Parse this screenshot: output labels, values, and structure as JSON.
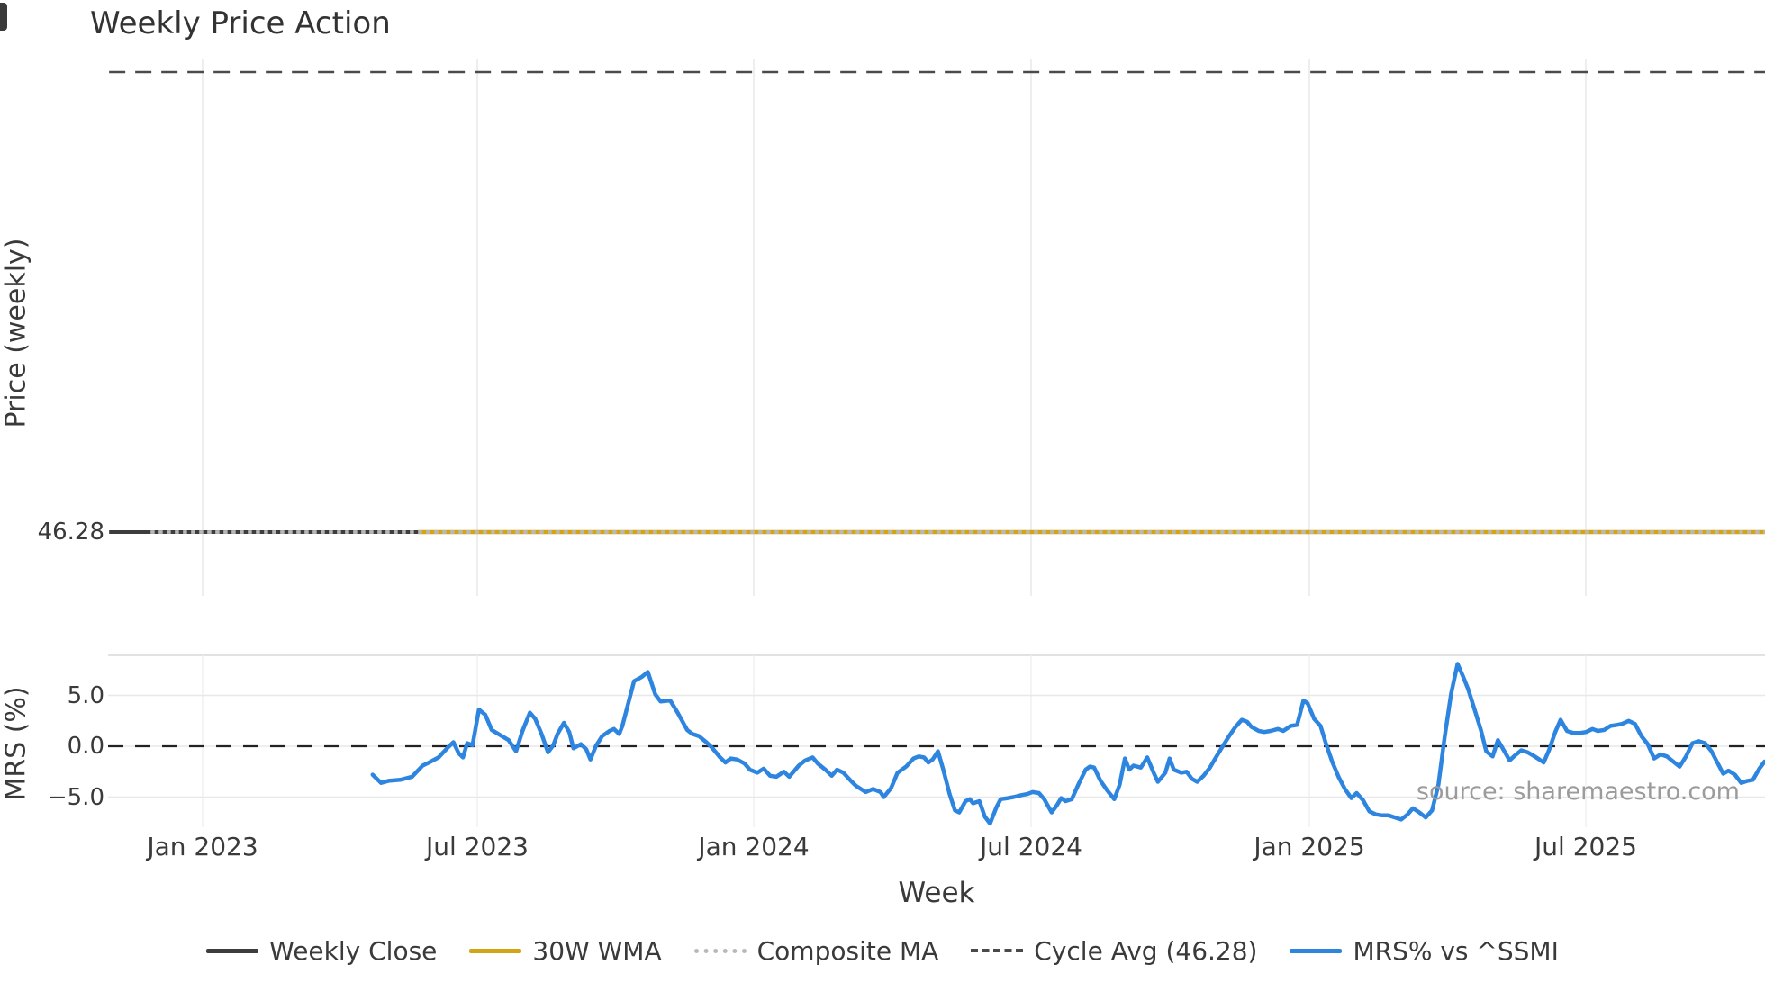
{
  "title": "Weekly Price Action",
  "source": "source: sharemaestro.com",
  "price_panel": {
    "ylabel": "Price (weekly)",
    "ytick_label": "46.28"
  },
  "mrs_panel": {
    "ylabel": "MRS (%)",
    "yticks": [
      "5.0",
      "0.0",
      "−5.0"
    ],
    "ytick_values": [
      5.0,
      0.0,
      -5.0
    ]
  },
  "xaxis": {
    "label": "Week",
    "tick_labels": [
      "Jan 2023",
      "Jul 2023",
      "Jan 2024",
      "Jul 2024",
      "Jan 2025",
      "Jul 2025"
    ]
  },
  "colors": {
    "dark": "#3d3d3d",
    "gold": "#d4a417",
    "gray_dotted": "#b9b9b9",
    "cycle_dash": "#4a4a4a",
    "blue": "#2d85e0",
    "zero_dash": "#222222",
    "grid": "#e8e8e8",
    "grid_faint": "#efefef",
    "panel_border": "#d9d9d9",
    "text": "#3a3a3a",
    "source_text": "#9b9b9b"
  },
  "legend": [
    {
      "label": "Weekly Close",
      "style": "solid",
      "color": "#3d3d3d"
    },
    {
      "label": "30W WMA",
      "style": "solid",
      "color": "#d4a417"
    },
    {
      "label": "Composite MA",
      "style": "dotted",
      "color": "#b9b9b9"
    },
    {
      "label": "Cycle Avg (46.28)",
      "style": "dashed",
      "color": "#4a4a4a"
    },
    {
      "label": "MRS% vs ^SSMI",
      "style": "solid",
      "color": "#2d85e0"
    }
  ],
  "chart_data": [
    {
      "type": "line",
      "panel": "price",
      "title": "Weekly Price Action",
      "ylabel": "Price (weekly)",
      "yticks": [
        46.28
      ],
      "x_axis": {
        "label": "Week",
        "tick_labels": [
          "Jan 2023",
          "Jul 2023",
          "Jan 2024",
          "Jul 2024",
          "Jan 2025",
          "Jul 2025"
        ],
        "tick_weeks": [
          0,
          25.9,
          51.9,
          78.0,
          104.1,
          130.2
        ]
      },
      "series": [
        {
          "name": "Weekly Close",
          "style": "solid",
          "color": "#3d3d3d",
          "value": 46.28,
          "start_week": -8.8,
          "end_week": 147,
          "note": "flat at 46.28 across entire range"
        },
        {
          "name": "30W WMA",
          "style": "solid",
          "color": "#d4a417",
          "value": 46.28,
          "start_week": 20.3,
          "end_week": 147,
          "note": "flat, overlays weekly close"
        },
        {
          "name": "Composite MA",
          "style": "dotted",
          "color": "#b9b9b9",
          "value": 46.28,
          "start_week": -4.9,
          "end_week": 147,
          "note": "dotted, drawn on top"
        },
        {
          "name": "Cycle Avg",
          "style": "dashed",
          "color": "#4a4a4a",
          "value": 46.28,
          "start_week": -8.8,
          "end_week": 147,
          "note": "dashed line rendered along top of panel"
        }
      ]
    },
    {
      "type": "line",
      "panel": "mrs",
      "name": "MRS% vs ^SSMI",
      "color": "#2d85e0",
      "ylabel": "MRS (%)",
      "yticks": [
        5.0,
        0.0,
        -5.0
      ],
      "ylim": [
        -8.0,
        8.9
      ],
      "zero_line": true,
      "x_unit": "weeks since 2023-01-01",
      "points": [
        [
          16.0,
          -2.8
        ],
        [
          16.8,
          -3.6
        ],
        [
          17.5,
          -3.4
        ],
        [
          18.6,
          -3.3
        ],
        [
          19.7,
          -3.0
        ],
        [
          20.7,
          -1.9
        ],
        [
          21.3,
          -1.6
        ],
        [
          22.2,
          -1.1
        ],
        [
          23.1,
          -0.1
        ],
        [
          23.6,
          0.4
        ],
        [
          24.1,
          -0.7
        ],
        [
          24.5,
          -1.1
        ],
        [
          24.9,
          0.3
        ],
        [
          25.4,
          0.1
        ],
        [
          26.0,
          3.6
        ],
        [
          26.6,
          3.1
        ],
        [
          27.2,
          1.6
        ],
        [
          28.0,
          1.1
        ],
        [
          28.8,
          0.6
        ],
        [
          29.5,
          -0.5
        ],
        [
          30.1,
          1.5
        ],
        [
          30.8,
          3.3
        ],
        [
          31.3,
          2.7
        ],
        [
          31.9,
          1.2
        ],
        [
          32.5,
          -0.6
        ],
        [
          33.0,
          0.1
        ],
        [
          33.4,
          1.2
        ],
        [
          34.0,
          2.3
        ],
        [
          34.5,
          1.4
        ],
        [
          34.9,
          -0.2
        ],
        [
          35.6,
          0.2
        ],
        [
          36.1,
          -0.3
        ],
        [
          36.5,
          -1.3
        ],
        [
          37.0,
          0.0
        ],
        [
          37.6,
          1.0
        ],
        [
          38.3,
          1.5
        ],
        [
          38.7,
          1.7
        ],
        [
          39.2,
          1.2
        ],
        [
          39.5,
          2.0
        ],
        [
          40.6,
          6.4
        ],
        [
          41.3,
          6.8
        ],
        [
          41.9,
          7.3
        ],
        [
          42.6,
          5.1
        ],
        [
          43.1,
          4.4
        ],
        [
          44.0,
          4.5
        ],
        [
          44.7,
          3.3
        ],
        [
          45.6,
          1.6
        ],
        [
          46.1,
          1.2
        ],
        [
          46.7,
          1.0
        ],
        [
          47.4,
          0.4
        ],
        [
          47.9,
          -0.1
        ],
        [
          48.7,
          -1.1
        ],
        [
          49.2,
          -1.6
        ],
        [
          49.7,
          -1.2
        ],
        [
          50.3,
          -1.3
        ],
        [
          51.0,
          -1.7
        ],
        [
          51.5,
          -2.3
        ],
        [
          52.2,
          -2.6
        ],
        [
          52.8,
          -2.2
        ],
        [
          53.4,
          -2.9
        ],
        [
          54.0,
          -3.0
        ],
        [
          54.7,
          -2.5
        ],
        [
          55.2,
          -3.0
        ],
        [
          56.1,
          -1.9
        ],
        [
          56.7,
          -1.4
        ],
        [
          57.4,
          -1.1
        ],
        [
          57.9,
          -1.7
        ],
        [
          58.6,
          -2.3
        ],
        [
          59.2,
          -2.9
        ],
        [
          59.7,
          -2.3
        ],
        [
          60.3,
          -2.6
        ],
        [
          61.0,
          -3.4
        ],
        [
          61.5,
          -3.9
        ],
        [
          62.4,
          -4.5
        ],
        [
          63.1,
          -4.2
        ],
        [
          63.8,
          -4.5
        ],
        [
          64.1,
          -5.0
        ],
        [
          64.8,
          -4.1
        ],
        [
          65.4,
          -2.6
        ],
        [
          66.2,
          -2.0
        ],
        [
          66.9,
          -1.2
        ],
        [
          67.4,
          -1.0
        ],
        [
          67.9,
          -1.1
        ],
        [
          68.3,
          -1.6
        ],
        [
          68.7,
          -1.3
        ],
        [
          69.2,
          -0.5
        ],
        [
          69.7,
          -2.3
        ],
        [
          70.3,
          -4.7
        ],
        [
          70.8,
          -6.3
        ],
        [
          71.2,
          -6.5
        ],
        [
          71.8,
          -5.4
        ],
        [
          72.2,
          -5.2
        ],
        [
          72.5,
          -5.6
        ],
        [
          73.1,
          -5.4
        ],
        [
          73.6,
          -6.9
        ],
        [
          74.1,
          -7.6
        ],
        [
          74.7,
          -6.0
        ],
        [
          75.1,
          -5.2
        ],
        [
          75.8,
          -5.1
        ],
        [
          76.3,
          -5.0
        ],
        [
          77.1,
          -4.8
        ],
        [
          77.6,
          -4.7
        ],
        [
          78.1,
          -4.5
        ],
        [
          78.7,
          -4.6
        ],
        [
          79.2,
          -5.2
        ],
        [
          79.9,
          -6.5
        ],
        [
          80.4,
          -5.8
        ],
        [
          80.8,
          -5.1
        ],
        [
          81.2,
          -5.4
        ],
        [
          81.8,
          -5.2
        ],
        [
          82.4,
          -3.8
        ],
        [
          83.1,
          -2.3
        ],
        [
          83.5,
          -2.0
        ],
        [
          83.9,
          -2.1
        ],
        [
          84.5,
          -3.4
        ],
        [
          85.1,
          -4.3
        ],
        [
          85.8,
          -5.2
        ],
        [
          86.3,
          -3.8
        ],
        [
          86.8,
          -1.2
        ],
        [
          87.2,
          -2.3
        ],
        [
          87.6,
          -1.9
        ],
        [
          88.3,
          -2.1
        ],
        [
          88.9,
          -1.1
        ],
        [
          89.5,
          -2.6
        ],
        [
          89.9,
          -3.5
        ],
        [
          90.6,
          -2.6
        ],
        [
          91.0,
          -1.2
        ],
        [
          91.4,
          -2.3
        ],
        [
          92.1,
          -2.6
        ],
        [
          92.6,
          -2.5
        ],
        [
          93.1,
          -3.2
        ],
        [
          93.6,
          -3.5
        ],
        [
          94.2,
          -2.9
        ],
        [
          94.8,
          -2.1
        ],
        [
          95.3,
          -1.2
        ],
        [
          96.0,
          0.0
        ],
        [
          96.6,
          1.0
        ],
        [
          97.2,
          1.9
        ],
        [
          97.8,
          2.6
        ],
        [
          98.3,
          2.4
        ],
        [
          98.7,
          1.9
        ],
        [
          99.4,
          1.5
        ],
        [
          99.9,
          1.4
        ],
        [
          100.5,
          1.5
        ],
        [
          101.2,
          1.7
        ],
        [
          101.7,
          1.5
        ],
        [
          102.4,
          2.0
        ],
        [
          103.0,
          2.1
        ],
        [
          103.6,
          4.5
        ],
        [
          104.0,
          4.2
        ],
        [
          104.6,
          2.7
        ],
        [
          105.2,
          2.0
        ],
        [
          105.7,
          0.3
        ],
        [
          106.3,
          -1.5
        ],
        [
          106.9,
          -3.0
        ],
        [
          107.5,
          -4.2
        ],
        [
          108.1,
          -5.1
        ],
        [
          108.6,
          -4.6
        ],
        [
          109.2,
          -5.3
        ],
        [
          109.8,
          -6.4
        ],
        [
          110.4,
          -6.7
        ],
        [
          111.0,
          -6.8
        ],
        [
          111.6,
          -6.8
        ],
        [
          112.2,
          -7.0
        ],
        [
          112.8,
          -7.2
        ],
        [
          113.4,
          -6.7
        ],
        [
          113.9,
          -6.1
        ],
        [
          114.5,
          -6.5
        ],
        [
          115.1,
          -7.0
        ],
        [
          115.7,
          -6.3
        ],
        [
          116.3,
          -3.8
        ],
        [
          116.9,
          1.0
        ],
        [
          117.5,
          5.2
        ],
        [
          118.1,
          8.1
        ],
        [
          118.6,
          6.9
        ],
        [
          119.1,
          5.6
        ],
        [
          119.7,
          3.6
        ],
        [
          120.3,
          1.6
        ],
        [
          120.8,
          -0.5
        ],
        [
          121.4,
          -1.0
        ],
        [
          121.9,
          0.6
        ],
        [
          122.4,
          -0.3
        ],
        [
          123.0,
          -1.4
        ],
        [
          123.5,
          -0.9
        ],
        [
          124.1,
          -0.4
        ],
        [
          124.7,
          -0.6
        ],
        [
          125.2,
          -0.9
        ],
        [
          125.8,
          -1.3
        ],
        [
          126.2,
          -1.6
        ],
        [
          126.7,
          -0.4
        ],
        [
          127.3,
          1.4
        ],
        [
          127.8,
          2.6
        ],
        [
          128.4,
          1.5
        ],
        [
          129.0,
          1.3
        ],
        [
          129.6,
          1.3
        ],
        [
          130.2,
          1.4
        ],
        [
          130.8,
          1.7
        ],
        [
          131.3,
          1.5
        ],
        [
          131.9,
          1.6
        ],
        [
          132.5,
          2.0
        ],
        [
          133.1,
          2.1
        ],
        [
          133.6,
          2.2
        ],
        [
          134.2,
          2.5
        ],
        [
          134.8,
          2.2
        ],
        [
          135.4,
          1.0
        ],
        [
          136.0,
          0.2
        ],
        [
          136.6,
          -1.2
        ],
        [
          137.2,
          -0.8
        ],
        [
          137.8,
          -1.0
        ],
        [
          138.4,
          -1.5
        ],
        [
          139.0,
          -2.0
        ],
        [
          139.6,
          -1.0
        ],
        [
          140.2,
          0.3
        ],
        [
          140.8,
          0.5
        ],
        [
          141.4,
          0.3
        ],
        [
          142.0,
          -0.5
        ],
        [
          142.5,
          -1.5
        ],
        [
          143.1,
          -2.7
        ],
        [
          143.6,
          -2.4
        ],
        [
          144.2,
          -2.8
        ],
        [
          144.8,
          -3.6
        ],
        [
          145.4,
          -3.4
        ],
        [
          145.9,
          -3.3
        ],
        [
          146.5,
          -2.2
        ],
        [
          147.0,
          -1.5
        ]
      ]
    }
  ]
}
